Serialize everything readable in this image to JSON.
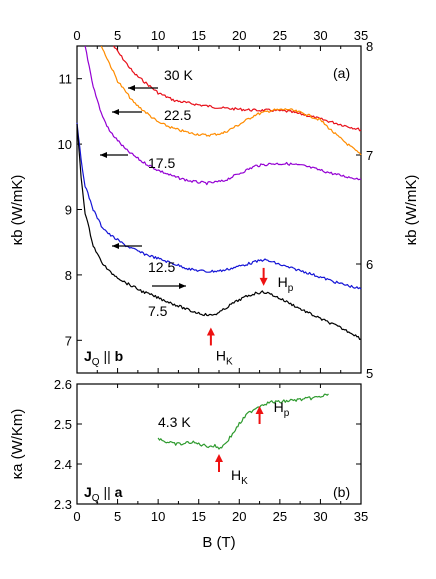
{
  "chart_data": [
    {
      "panel": "(a)",
      "type": "line",
      "xlabel": "B (T)",
      "ylabel_left": "κb (W/mK)",
      "ylabel_right": "κb (W/mK)",
      "xlim": [
        0,
        35
      ],
      "ylim_left": [
        6.5,
        11.5
      ],
      "ylim_right": [
        5,
        8
      ],
      "x_ticks": [
        0,
        5,
        10,
        15,
        20,
        25,
        30,
        35
      ],
      "y_ticks_left": [
        7,
        8,
        9,
        10,
        11
      ],
      "y_ticks_right": [
        5,
        6,
        7,
        8
      ],
      "panel_label": "(a)",
      "geometry_label": {
        "prefix": "J",
        "sub": "Q",
        "mid": " || ",
        "axis": "b"
      },
      "grid": false,
      "series": [
        {
          "name": "30 K",
          "axis": "right",
          "color": "#e8101a",
          "x": [
            4.5,
            7,
            10,
            12,
            15,
            18,
            20,
            22,
            24,
            26,
            28,
            30,
            32,
            34,
            35
          ],
          "y": [
            8.0,
            7.75,
            7.57,
            7.5,
            7.46,
            7.43,
            7.42,
            7.41,
            7.41,
            7.4,
            7.37,
            7.33,
            7.29,
            7.25,
            7.23
          ]
        },
        {
          "name": "22.5",
          "axis": "right",
          "color": "#ff8c00",
          "x": [
            3,
            5,
            7,
            10,
            12,
            14,
            16,
            18,
            20,
            22,
            24,
            26,
            28,
            30,
            32,
            34,
            35
          ],
          "y": [
            8.0,
            7.68,
            7.48,
            7.3,
            7.24,
            7.2,
            7.18,
            7.2,
            7.28,
            7.37,
            7.41,
            7.42,
            7.38,
            7.32,
            7.18,
            7.06,
            7.0
          ]
        },
        {
          "name": "17.5",
          "axis": "right",
          "color": "#9400d3",
          "x": [
            1,
            2,
            3,
            4,
            6,
            8,
            10,
            12,
            14,
            16,
            18,
            20,
            22,
            24,
            26,
            28,
            30,
            32,
            34,
            35
          ],
          "y": [
            8.0,
            7.63,
            7.38,
            7.22,
            7.05,
            6.94,
            6.86,
            6.8,
            6.76,
            6.74,
            6.76,
            6.83,
            6.9,
            6.92,
            6.92,
            6.9,
            6.86,
            6.82,
            6.79,
            6.78
          ]
        },
        {
          "name": "12.5",
          "axis": "right",
          "color": "#1515d6",
          "x": [
            0,
            0.5,
            1,
            2,
            3,
            4,
            6,
            8,
            10,
            12,
            14,
            16,
            18,
            20,
            22,
            23,
            24,
            26,
            28,
            30,
            32,
            34,
            35
          ],
          "y": [
            7.3,
            6.95,
            6.72,
            6.5,
            6.35,
            6.27,
            6.17,
            6.1,
            6.05,
            6.0,
            5.95,
            5.93,
            5.94,
            5.98,
            6.02,
            6.04,
            6.02,
            5.97,
            5.93,
            5.88,
            5.83,
            5.79,
            5.77
          ]
        },
        {
          "name": "7.5",
          "axis": "left",
          "color": "#000000",
          "x": [
            0,
            0.5,
            1,
            2,
            3,
            4,
            6,
            8,
            10,
            12,
            14,
            15.5,
            16.5,
            17.5,
            19,
            20.5,
            22,
            23,
            24,
            26,
            28,
            30,
            32,
            34,
            35
          ],
          "y": [
            10.3,
            9.5,
            8.95,
            8.45,
            8.2,
            8.05,
            7.88,
            7.75,
            7.65,
            7.55,
            7.45,
            7.4,
            7.38,
            7.42,
            7.55,
            7.65,
            7.72,
            7.74,
            7.7,
            7.58,
            7.45,
            7.33,
            7.22,
            7.1,
            7.02
          ]
        }
      ],
      "arrow_direction_words": [
        "right",
        "left",
        "left",
        "left",
        "left"
      ],
      "annotations": [
        {
          "text": "H",
          "sub": "K",
          "x": 16.5,
          "y": 7.38,
          "arrow": "up"
        },
        {
          "text": "H",
          "sub": "p",
          "x": 23,
          "y": 7.74,
          "arrow": "down"
        }
      ]
    },
    {
      "panel": "(b)",
      "type": "line",
      "xlabel": "B (T)",
      "ylabel": "κa (W/Km)",
      "xlim": [
        0,
        35
      ],
      "ylim": [
        2.3,
        2.6
      ],
      "x_ticks": [
        0,
        5,
        10,
        15,
        20,
        25,
        30,
        35
      ],
      "y_ticks": [
        2.3,
        2.4,
        2.5,
        2.6
      ],
      "panel_label": "(b)",
      "geometry_label": {
        "prefix": "J",
        "sub": "Q",
        "mid": " || ",
        "axis": "a"
      },
      "grid": false,
      "series": [
        {
          "name": "4.3 K",
          "color": "#2e9a2e",
          "x": [
            10,
            11,
            12,
            13,
            14,
            15,
            16,
            17,
            17.5,
            18,
            19,
            20,
            21,
            22,
            23,
            24,
            25,
            26,
            27,
            28,
            29,
            30,
            31
          ],
          "y": [
            2.465,
            2.455,
            2.45,
            2.45,
            2.455,
            2.45,
            2.445,
            2.445,
            2.44,
            2.445,
            2.47,
            2.5,
            2.525,
            2.54,
            2.55,
            2.555,
            2.555,
            2.558,
            2.56,
            2.562,
            2.565,
            2.568,
            2.575
          ]
        }
      ],
      "annotations": [
        {
          "text": "H",
          "sub": "K",
          "x": 17.5,
          "y": 2.44,
          "arrow": "up"
        },
        {
          "text": "H",
          "sub": "p",
          "x": 22.5,
          "y": 2.54,
          "arrow": "up"
        }
      ]
    }
  ],
  "colors": {
    "arrow_red": "#ee1111",
    "axes": "#000000"
  }
}
